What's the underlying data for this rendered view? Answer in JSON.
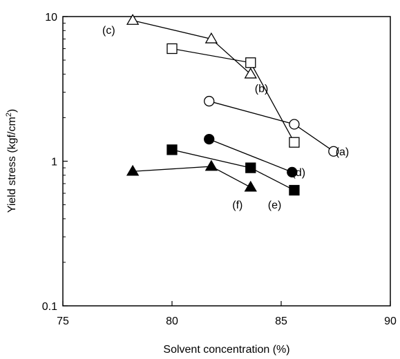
{
  "chart_data": {
    "type": "scatter",
    "title": "",
    "xlabel": "Solvent concentration (%)",
    "ylabel_main": "Yield stress (kgf/cm",
    "ylabel_sup": "2",
    "ylabel_close": ")",
    "xlim": [
      75,
      90
    ],
    "ylim": [
      0.1,
      10
    ],
    "yscale": "log",
    "grid": false,
    "xticks": [
      75,
      80,
      85,
      90
    ],
    "xtick_labels": [
      "75",
      "80",
      "85",
      "90"
    ],
    "yticks": [
      0.1,
      1,
      10
    ],
    "ytick_labels": [
      "0.1",
      "1",
      "10"
    ],
    "series": [
      {
        "name": "(a)",
        "marker": "circle-open",
        "color": "#000000",
        "x": [
          81.7,
          85.6,
          87.4
        ],
        "y": [
          2.6,
          1.8,
          1.17
        ]
      },
      {
        "name": "(b)",
        "marker": "square-open",
        "color": "#000000",
        "x": [
          80.0,
          83.6,
          85.6
        ],
        "y": [
          6.0,
          4.8,
          1.35
        ]
      },
      {
        "name": "(c)",
        "marker": "triangle-open",
        "color": "#000000",
        "x": [
          78.2,
          81.8,
          83.6
        ],
        "y": [
          9.4,
          7.0,
          4.0
        ]
      },
      {
        "name": "(d)",
        "marker": "circle-filled",
        "color": "#000000",
        "x": [
          81.7,
          85.5
        ],
        "y": [
          1.42,
          0.84
        ]
      },
      {
        "name": "(e)",
        "marker": "square-filled",
        "color": "#000000",
        "x": [
          80.0,
          83.6,
          85.6
        ],
        "y": [
          1.2,
          0.9,
          0.63
        ]
      },
      {
        "name": "(f)",
        "marker": "triangle-filled",
        "color": "#000000",
        "x": [
          78.2,
          81.8,
          83.6
        ],
        "y": [
          0.85,
          0.92,
          0.66
        ]
      }
    ],
    "annotations": [
      {
        "text": "(a)",
        "x": 87.8,
        "y": 1.1
      },
      {
        "text": "(b)",
        "x": 84.1,
        "y": 3.0
      },
      {
        "text": "(c)",
        "x": 77.1,
        "y": 7.6
      },
      {
        "text": "(d)",
        "x": 85.8,
        "y": 0.79
      },
      {
        "text": "(e)",
        "x": 84.7,
        "y": 0.47
      },
      {
        "text": "(f)",
        "x": 83.0,
        "y": 0.47
      }
    ]
  }
}
